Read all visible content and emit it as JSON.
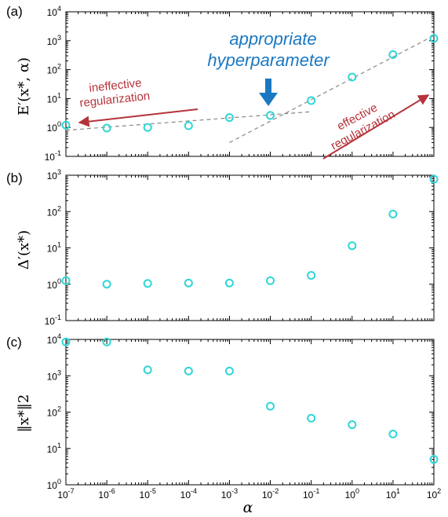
{
  "colors": {
    "marker": "#2fd6d6",
    "trend": "#888888",
    "annotation_blue": "#1a78c2",
    "annotation_red": "#b5333a"
  },
  "chart_data": [
    {
      "type": "scatter",
      "panel_label": "(a)",
      "ylabel": "E′(x*, α)",
      "xscale": "log",
      "yscale": "log",
      "xlim": [
        1e-07,
        100
      ],
      "ylim": [
        0.1,
        10000
      ],
      "x": [
        1e-07,
        1e-06,
        1e-05,
        0.0001,
        0.001,
        0.01,
        0.1,
        1,
        10,
        100
      ],
      "values": [
        1.2,
        0.95,
        1.0,
        1.15,
        2.2,
        2.6,
        8.5,
        55,
        330,
        1200
      ],
      "yticks": [
        "10-1",
        "100",
        "101",
        "102",
        "103",
        "104"
      ],
      "annotations": {
        "blue": [
          "appropriate",
          "hyperparameter"
        ],
        "left": [
          "ineffective",
          "regularization"
        ],
        "right": [
          "effective",
          "regularization"
        ]
      },
      "trend_lines": [
        {
          "x": [
            1e-07,
            0.1
          ],
          "y": [
            0.8,
            3.5
          ]
        },
        {
          "x": [
            0.001,
            100
          ],
          "y": [
            0.3,
            1500
          ]
        }
      ]
    },
    {
      "type": "scatter",
      "panel_label": "(b)",
      "ylabel": "Δ′(x*)",
      "xscale": "log",
      "yscale": "log",
      "xlim": [
        1e-07,
        100
      ],
      "ylim": [
        0.1,
        1000
      ],
      "x": [
        1e-07,
        1e-06,
        1e-05,
        0.0001,
        0.001,
        0.01,
        0.1,
        1,
        10,
        100
      ],
      "values": [
        1.25,
        1.0,
        1.05,
        1.08,
        1.08,
        1.25,
        1.75,
        11.5,
        85,
        780
      ],
      "yticks": [
        "10-1",
        "100",
        "101",
        "102",
        "103"
      ]
    },
    {
      "type": "scatter",
      "panel_label": "(c)",
      "ylabel": "‖x*‖2",
      "xscale": "log",
      "yscale": "log",
      "xlim": [
        1e-07,
        100
      ],
      "ylim": [
        1,
        10000
      ],
      "x": [
        1e-07,
        1e-06,
        1e-05,
        0.0001,
        0.001,
        0.01,
        0.1,
        1,
        10,
        100
      ],
      "values": [
        8500,
        8500,
        1450,
        1350,
        1350,
        145,
        68,
        45,
        25,
        5
      ],
      "yticks": [
        "100",
        "101",
        "102",
        "103",
        "104"
      ],
      "xticks": [
        "10-7",
        "10-6",
        "10-5",
        "10-4",
        "10-3",
        "10-2",
        "10-1",
        "100",
        "101",
        "102"
      ],
      "xlabel": "α"
    }
  ]
}
